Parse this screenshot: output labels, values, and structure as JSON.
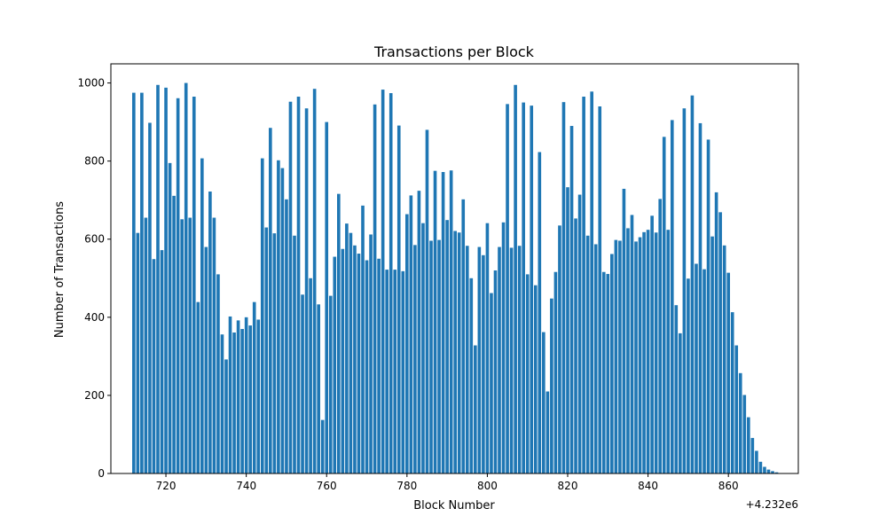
{
  "chart_data": {
    "type": "bar",
    "title": "Transactions per Block",
    "xlabel": "Block Number",
    "ylabel": "Number of Transactions",
    "x_offset_text": "+4.232e6",
    "x_ticks": [
      720,
      740,
      760,
      780,
      800,
      820,
      840,
      860
    ],
    "x_tick_labels": [
      "720",
      "740",
      "760",
      "780",
      "800",
      "820",
      "840",
      "860"
    ],
    "y_ticks": [
      0,
      200,
      400,
      600,
      800,
      1000
    ],
    "y_tick_labels": [
      "0",
      "200",
      "400",
      "600",
      "800",
      "1000"
    ],
    "xlim": [
      706.3,
      877.4
    ],
    "ylim": [
      0,
      1049
    ],
    "grid": false,
    "bar_color": "#1f77b4",
    "x": [
      712,
      713,
      714,
      715,
      716,
      717,
      718,
      719,
      720,
      721,
      722,
      723,
      724,
      725,
      726,
      727,
      728,
      729,
      730,
      731,
      732,
      733,
      734,
      735,
      736,
      737,
      738,
      739,
      740,
      741,
      742,
      743,
      744,
      745,
      746,
      747,
      748,
      749,
      750,
      751,
      752,
      753,
      754,
      755,
      756,
      757,
      758,
      759,
      760,
      761,
      762,
      763,
      764,
      765,
      766,
      767,
      768,
      769,
      770,
      771,
      772,
      773,
      774,
      775,
      776,
      777,
      778,
      779,
      780,
      781,
      782,
      783,
      784,
      785,
      786,
      787,
      788,
      789,
      790,
      791,
      792,
      793,
      794,
      795,
      796,
      797,
      798,
      799,
      800,
      801,
      802,
      803,
      804,
      805,
      806,
      807,
      808,
      809,
      810,
      811,
      812,
      813,
      814,
      815,
      816,
      817,
      818,
      819,
      820,
      821,
      822,
      823,
      824,
      825,
      826,
      827,
      828,
      829,
      830,
      831,
      832,
      833,
      834,
      835,
      836,
      837,
      838,
      839,
      840,
      841,
      842,
      843,
      844,
      845,
      846,
      847,
      848,
      849,
      850,
      851,
      852,
      853,
      854,
      855,
      856,
      857,
      858,
      859,
      860,
      861,
      862,
      863,
      864,
      865,
      866,
      867,
      868,
      869,
      870,
      871,
      872
    ],
    "values": [
      975,
      616,
      975,
      655,
      898,
      549,
      995,
      572,
      988,
      795,
      711,
      961,
      651,
      1000,
      655,
      965,
      439,
      807,
      580,
      722,
      655,
      510,
      356,
      292,
      402,
      361,
      392,
      370,
      400,
      379,
      439,
      394,
      807,
      630,
      885,
      615,
      802,
      782,
      702,
      952,
      609,
      965,
      458,
      935,
      500,
      985,
      433,
      137,
      900,
      455,
      555,
      716,
      575,
      640,
      616,
      584,
      563,
      686,
      546,
      612,
      945,
      550,
      983,
      522,
      974,
      522,
      891,
      518,
      664,
      712,
      585,
      724,
      641,
      880,
      596,
      775,
      598,
      772,
      649,
      776,
      621,
      617,
      702,
      583,
      500,
      328,
      580,
      559,
      641,
      462,
      520,
      580,
      643,
      946,
      578,
      995,
      583,
      950,
      510,
      942,
      482,
      823,
      362,
      210,
      448,
      516,
      635,
      951,
      733,
      890,
      653,
      714,
      965,
      609,
      978,
      587,
      940,
      516,
      511,
      562,
      598,
      596,
      729,
      628,
      662,
      594,
      605,
      618,
      624,
      660,
      617,
      703,
      862,
      624,
      905,
      431,
      359,
      935,
      499,
      968,
      537,
      897,
      523,
      855,
      607,
      720,
      669,
      584,
      514,
      413,
      328,
      257,
      201,
      144,
      91,
      58,
      30,
      17,
      10,
      6,
      3
    ]
  }
}
